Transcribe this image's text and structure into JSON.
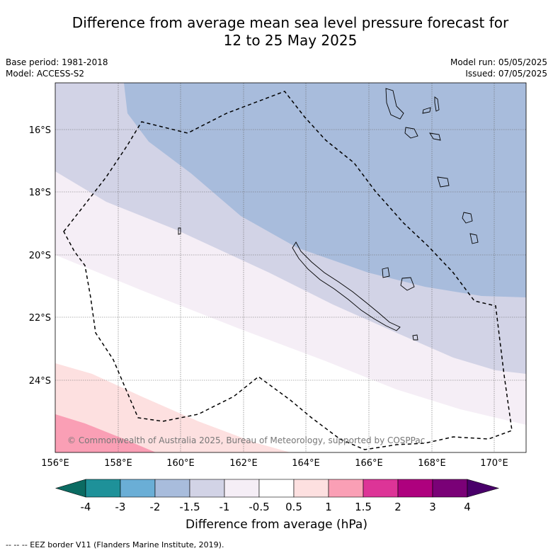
{
  "title_line1": "Difference from average mean sea level pressure forecast for",
  "title_line2": "12 to 25 May 2025",
  "base_period": "Base period: 1981-2018",
  "model": "Model: ACCESS-S2",
  "model_run": "Model run: 05/05/2025",
  "issued": "Issued: 07/05/2025",
  "copyright": "© Commonwealth of Australia 2025, Bureau of Meteorology, supported by COSPPac",
  "lat_labels": [
    "16°S",
    "18°S",
    "20°S",
    "22°S",
    "24°S"
  ],
  "lon_labels": [
    "156°E",
    "158°E",
    "160°E",
    "162°E",
    "164°E",
    "166°E",
    "168°E",
    "170°E"
  ],
  "colorbar": {
    "title": "Difference from average (hPa)",
    "ticks": [
      "-4",
      "-3",
      "-2",
      "-1.5",
      "-1",
      "-0.5",
      "0.5",
      "1",
      "1.5",
      "2",
      "3",
      "4"
    ],
    "colors": [
      "#0b6b62",
      "#1e9199",
      "#6aaed6",
      "#a8bcdc",
      "#d2d3e6",
      "#f5eef6",
      "#ffffff",
      "#fde0e0",
      "#fa9fb5",
      "#dd3497",
      "#ae017e",
      "#7a0177",
      "#49006a"
    ]
  },
  "footer": "--  --  -- EEZ border V11 (Flanders Marine Institute, 2019)."
}
